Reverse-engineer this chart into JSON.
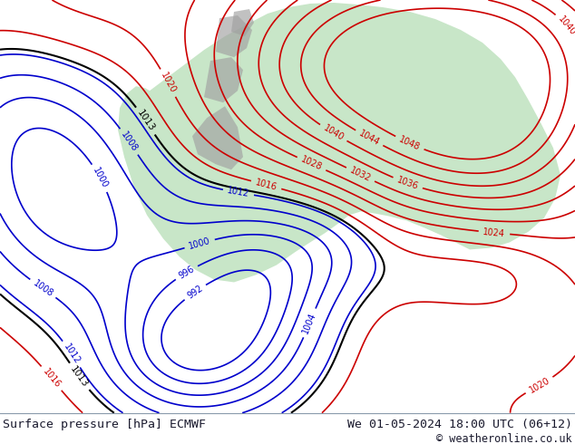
{
  "title_left": "Surface pressure [hPa] ECMWF",
  "title_right": "We 01-05-2024 18:00 UTC (06+12)",
  "copyright": "© weatheronline.co.uk",
  "bg_color": "#ffffff",
  "map_bg_color": "#d0e8f8",
  "land_color": "#c8e6c8",
  "gray_color": "#a0a0a0",
  "contour_color_red": "#cc0000",
  "contour_color_blue": "#0000cc",
  "contour_color_black": "#000000",
  "label_color_red": "#cc0000",
  "label_color_blue": "#0000cc",
  "label_color_black": "#000000",
  "footer_bg": "#dde8f5",
  "footer_text_color": "#1a1a2e",
  "fig_width": 6.34,
  "fig_height": 4.9,
  "dpi": 100
}
